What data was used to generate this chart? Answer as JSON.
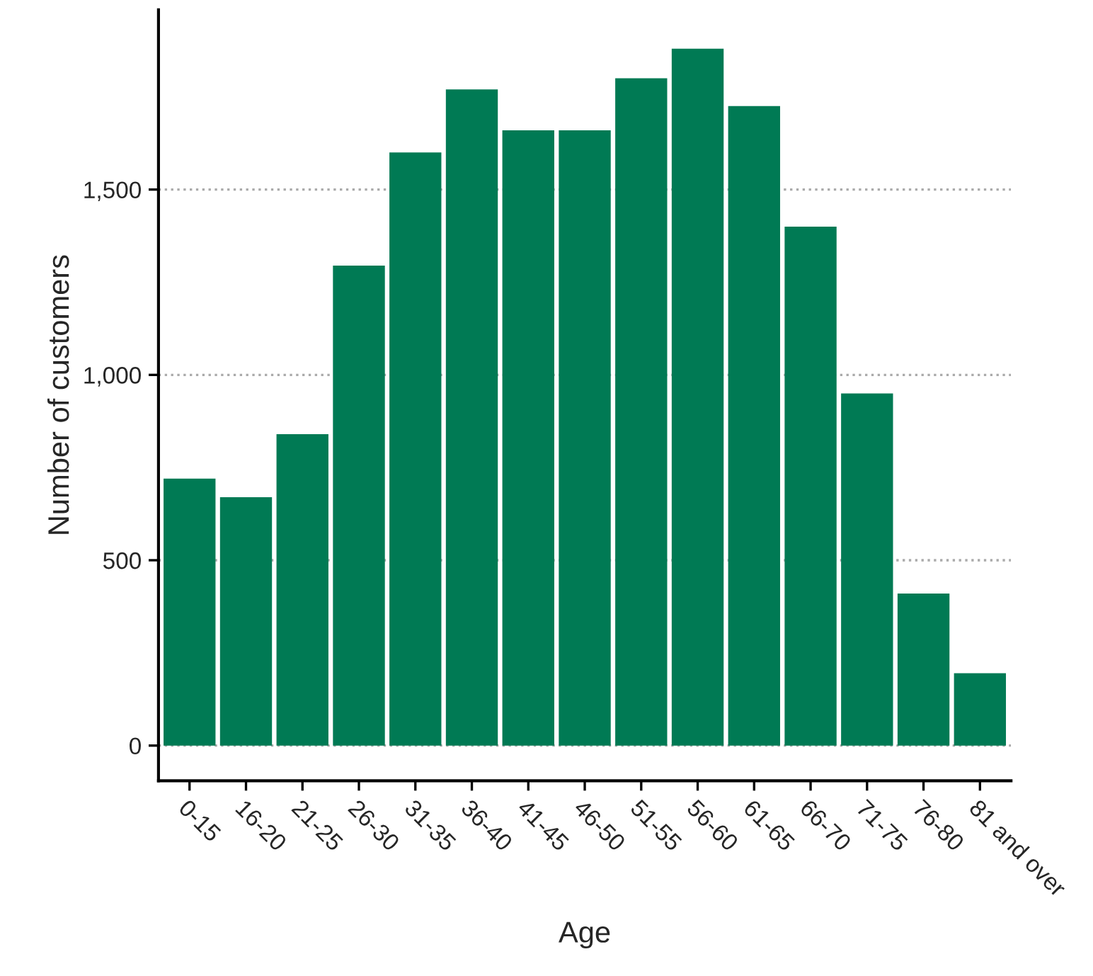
{
  "chart_data": {
    "type": "bar",
    "xlabel": "Age",
    "ylabel": "Number of customers",
    "categories": [
      "0-15",
      "16-20",
      "21-25",
      "26-30",
      "31-35",
      "36-40",
      "41-45",
      "46-50",
      "51-55",
      "56-60",
      "61-65",
      "66-70",
      "71-75",
      "76-80",
      "81 and over"
    ],
    "values": [
      720,
      670,
      840,
      1295,
      1600,
      1770,
      1660,
      1660,
      1800,
      1880,
      1725,
      1400,
      950,
      410,
      195
    ],
    "color": "#007a54",
    "ylim": [
      -95,
      1985
    ],
    "yticks": [
      0,
      {
        "value": 500,
        "label": "500"
      },
      {
        "value": 1000,
        "label": "1,000"
      },
      {
        "value": 1500,
        "label": "1,500"
      }
    ],
    "grid": "y",
    "legend": false
  }
}
